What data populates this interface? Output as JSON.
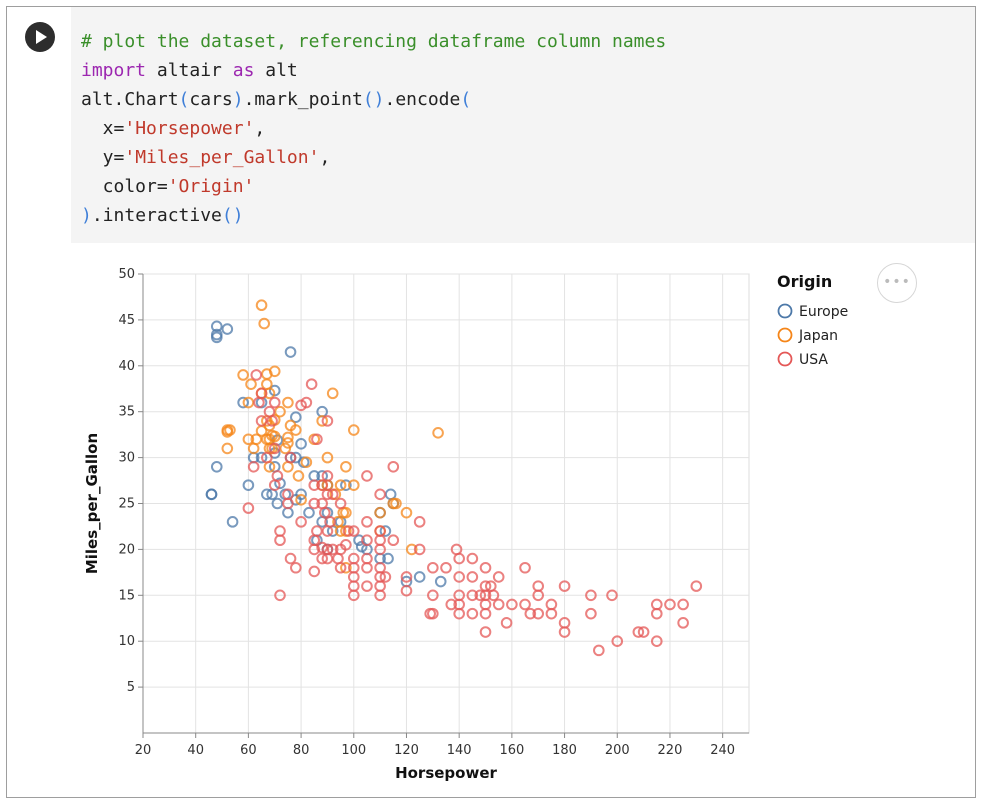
{
  "notebook": {
    "run_icon": "play-icon",
    "actions_icon": "more-horizontal-icon",
    "actions_label": "•••"
  },
  "code": {
    "lines": [
      [
        {
          "t": "# plot the dataset, referencing dataframe column names",
          "c": "comment"
        }
      ],
      [
        {
          "t": "import",
          "c": "keyword"
        },
        {
          "t": " altair ",
          "c": "plain"
        },
        {
          "t": "as",
          "c": "keyword"
        },
        {
          "t": " alt",
          "c": "plain"
        }
      ],
      [
        {
          "t": "alt.Chart",
          "c": "plain"
        },
        {
          "t": "(",
          "c": "bracket"
        },
        {
          "t": "cars",
          "c": "plain"
        },
        {
          "t": ")",
          "c": "bracket"
        },
        {
          "t": ".mark_point",
          "c": "plain"
        },
        {
          "t": "()",
          "c": "bracket"
        },
        {
          "t": ".encode",
          "c": "plain"
        },
        {
          "t": "(",
          "c": "bracket"
        }
      ],
      [
        {
          "t": "  x=",
          "c": "plain"
        },
        {
          "t": "'Horsepower'",
          "c": "string"
        },
        {
          "t": ",",
          "c": "plain"
        }
      ],
      [
        {
          "t": "  y=",
          "c": "plain"
        },
        {
          "t": "'Miles_per_Gallon'",
          "c": "string"
        },
        {
          "t": ",",
          "c": "plain"
        }
      ],
      [
        {
          "t": "  color=",
          "c": "plain"
        },
        {
          "t": "'Origin'",
          "c": "string"
        }
      ],
      [
        {
          "t": ")",
          "c": "bracket"
        },
        {
          "t": ".interactive",
          "c": "plain"
        },
        {
          "t": "()",
          "c": "bracket"
        }
      ]
    ]
  },
  "chart_data": {
    "type": "scatter",
    "xlabel": "Horsepower",
    "ylabel": "Miles_per_Gallon",
    "xlim": [
      20,
      250
    ],
    "ylim": [
      0,
      50
    ],
    "xticks": [
      20,
      40,
      60,
      80,
      100,
      120,
      140,
      160,
      180,
      200,
      220,
      240
    ],
    "yticks": [
      5,
      10,
      15,
      20,
      25,
      30,
      35,
      40,
      45,
      50
    ],
    "grid": true,
    "legend_title": "Origin",
    "legend_position": "top-right",
    "series": [
      {
        "name": "Europe",
        "color": "#4c78a8",
        "points": [
          [
            46,
            26
          ],
          [
            46,
            26
          ],
          [
            48,
            43.1
          ],
          [
            48,
            43.4
          ],
          [
            48,
            44.3
          ],
          [
            48,
            29
          ],
          [
            52,
            44
          ],
          [
            54,
            23
          ],
          [
            58,
            36
          ],
          [
            60,
            27
          ],
          [
            62,
            30
          ],
          [
            65,
            36
          ],
          [
            65,
            30
          ],
          [
            67,
            26
          ],
          [
            69,
            26
          ],
          [
            70,
            37.3
          ],
          [
            70,
            29
          ],
          [
            70,
            30.5
          ],
          [
            71,
            31.9
          ],
          [
            71,
            25
          ],
          [
            72,
            27.2
          ],
          [
            74,
            26
          ],
          [
            75,
            24
          ],
          [
            76,
            30
          ],
          [
            76,
            41.5
          ],
          [
            78,
            34.4
          ],
          [
            78,
            25.4
          ],
          [
            78,
            30
          ],
          [
            80,
            26
          ],
          [
            80,
            31.5
          ],
          [
            81,
            29.5
          ],
          [
            83,
            24
          ],
          [
            85,
            28
          ],
          [
            86,
            21
          ],
          [
            88,
            23
          ],
          [
            88,
            28
          ],
          [
            88,
            35
          ],
          [
            90,
            24
          ],
          [
            90,
            27
          ],
          [
            90,
            20
          ],
          [
            92,
            22
          ],
          [
            95,
            23
          ],
          [
            97,
            27
          ],
          [
            102,
            21
          ],
          [
            103,
            20.3
          ],
          [
            105,
            20
          ],
          [
            110,
            24
          ],
          [
            110,
            19
          ],
          [
            112,
            22
          ],
          [
            113,
            19
          ],
          [
            114,
            26
          ],
          [
            115,
            25
          ],
          [
            120,
            16.5
          ],
          [
            125,
            17
          ],
          [
            133,
            16.5
          ]
        ]
      },
      {
        "name": "Japan",
        "color": "#f58518",
        "points": [
          [
            52,
            32.8
          ],
          [
            52,
            33
          ],
          [
            52,
            31
          ],
          [
            53,
            33
          ],
          [
            58,
            39
          ],
          [
            60,
            36
          ],
          [
            60,
            32
          ],
          [
            61,
            38
          ],
          [
            62,
            31
          ],
          [
            63,
            32
          ],
          [
            65,
            46.6
          ],
          [
            65,
            37
          ],
          [
            65,
            32.9
          ],
          [
            66,
            44.6
          ],
          [
            67,
            39.1
          ],
          [
            67,
            38
          ],
          [
            67,
            32
          ],
          [
            67,
            34
          ],
          [
            68,
            31
          ],
          [
            68,
            33.5
          ],
          [
            68,
            29
          ],
          [
            68,
            32
          ],
          [
            68,
            37
          ],
          [
            69,
            31
          ],
          [
            69,
            32.4
          ],
          [
            70,
            39.4
          ],
          [
            70,
            34.1
          ],
          [
            70,
            32.3
          ],
          [
            72,
            35
          ],
          [
            74,
            31
          ],
          [
            75,
            36
          ],
          [
            75,
            31.6
          ],
          [
            75,
            32.2
          ],
          [
            75,
            29
          ],
          [
            76,
            33.5
          ],
          [
            78,
            33
          ],
          [
            79,
            28
          ],
          [
            80,
            25.4
          ],
          [
            82,
            29.5
          ],
          [
            85,
            32
          ],
          [
            88,
            27
          ],
          [
            88,
            34
          ],
          [
            90,
            30
          ],
          [
            90,
            27
          ],
          [
            92,
            37
          ],
          [
            93,
            26
          ],
          [
            94,
            23
          ],
          [
            95,
            22
          ],
          [
            95,
            27
          ],
          [
            96,
            24
          ],
          [
            97,
            29
          ],
          [
            97,
            18
          ],
          [
            97,
            24
          ],
          [
            97,
            22
          ],
          [
            100,
            33
          ],
          [
            100,
            27
          ],
          [
            110,
            24
          ],
          [
            110,
            22
          ],
          [
            115,
            25
          ],
          [
            116,
            25
          ],
          [
            120,
            24
          ],
          [
            122,
            20
          ],
          [
            132,
            32.7
          ]
        ]
      },
      {
        "name": "USA",
        "color": "#e45756",
        "points": [
          [
            60,
            24.5
          ],
          [
            62,
            29
          ],
          [
            63,
            39
          ],
          [
            64,
            36
          ],
          [
            65,
            37
          ],
          [
            65,
            34
          ],
          [
            67,
            30
          ],
          [
            68,
            35
          ],
          [
            69,
            34
          ],
          [
            70,
            36
          ],
          [
            70,
            31
          ],
          [
            70,
            27
          ],
          [
            71,
            28
          ],
          [
            72,
            15
          ],
          [
            72,
            22
          ],
          [
            72,
            21
          ],
          [
            75,
            25
          ],
          [
            75,
            26
          ],
          [
            76,
            19
          ],
          [
            76,
            30
          ],
          [
            78,
            18
          ],
          [
            80,
            35.7
          ],
          [
            80,
            23
          ],
          [
            82,
            36
          ],
          [
            84,
            38
          ],
          [
            85,
            27
          ],
          [
            85,
            25
          ],
          [
            85,
            17.6
          ],
          [
            85,
            21
          ],
          [
            85,
            20
          ],
          [
            86,
            32
          ],
          [
            86,
            22
          ],
          [
            88,
            27
          ],
          [
            88,
            25
          ],
          [
            88,
            20.2
          ],
          [
            88,
            19
          ],
          [
            89,
            24
          ],
          [
            90,
            34
          ],
          [
            90,
            26
          ],
          [
            90,
            28
          ],
          [
            90,
            22
          ],
          [
            90,
            20
          ],
          [
            90,
            19
          ],
          [
            91,
            23
          ],
          [
            92,
            26
          ],
          [
            92,
            20
          ],
          [
            94,
            19
          ],
          [
            95,
            25
          ],
          [
            95,
            18
          ],
          [
            95,
            20
          ],
          [
            97,
            20.5
          ],
          [
            98,
            22
          ],
          [
            100,
            22
          ],
          [
            100,
            19
          ],
          [
            100,
            16
          ],
          [
            100,
            18
          ],
          [
            100,
            15
          ],
          [
            100,
            17
          ],
          [
            105,
            28
          ],
          [
            105,
            23
          ],
          [
            105,
            18
          ],
          [
            105,
            16
          ],
          [
            105,
            19
          ],
          [
            105,
            21
          ],
          [
            110,
            26
          ],
          [
            110,
            22
          ],
          [
            110,
            21
          ],
          [
            110,
            18
          ],
          [
            110,
            17
          ],
          [
            110,
            16
          ],
          [
            110,
            15
          ],
          [
            110,
            20
          ],
          [
            112,
            17
          ],
          [
            115,
            29
          ],
          [
            115,
            21
          ],
          [
            120,
            17
          ],
          [
            120,
            15.5
          ],
          [
            125,
            20
          ],
          [
            125,
            23
          ],
          [
            129,
            13
          ],
          [
            130,
            18
          ],
          [
            130,
            15
          ],
          [
            130,
            13
          ],
          [
            135,
            18
          ],
          [
            137,
            14
          ],
          [
            139,
            20
          ],
          [
            140,
            19
          ],
          [
            140,
            17
          ],
          [
            140,
            15
          ],
          [
            140,
            14
          ],
          [
            140,
            13
          ],
          [
            145,
            19
          ],
          [
            145,
            17
          ],
          [
            145,
            13
          ],
          [
            145,
            15
          ],
          [
            148,
            15
          ],
          [
            150,
            18
          ],
          [
            150,
            16
          ],
          [
            150,
            15
          ],
          [
            150,
            14
          ],
          [
            150,
            13
          ],
          [
            150,
            11
          ],
          [
            152,
            16
          ],
          [
            153,
            15
          ],
          [
            155,
            17
          ],
          [
            155,
            14
          ],
          [
            158,
            12
          ],
          [
            160,
            14
          ],
          [
            165,
            18
          ],
          [
            165,
            14
          ],
          [
            167,
            13
          ],
          [
            170,
            16
          ],
          [
            170,
            15
          ],
          [
            170,
            13
          ],
          [
            175,
            14
          ],
          [
            175,
            13
          ],
          [
            180,
            16
          ],
          [
            180,
            12
          ],
          [
            180,
            11
          ],
          [
            190,
            15
          ],
          [
            190,
            13
          ],
          [
            193,
            9
          ],
          [
            198,
            15
          ],
          [
            200,
            10
          ],
          [
            208,
            11
          ],
          [
            210,
            11
          ],
          [
            215,
            14
          ],
          [
            215,
            13
          ],
          [
            215,
            10
          ],
          [
            220,
            14
          ],
          [
            225,
            14
          ],
          [
            225,
            12
          ],
          [
            230,
            16
          ]
        ]
      }
    ]
  }
}
